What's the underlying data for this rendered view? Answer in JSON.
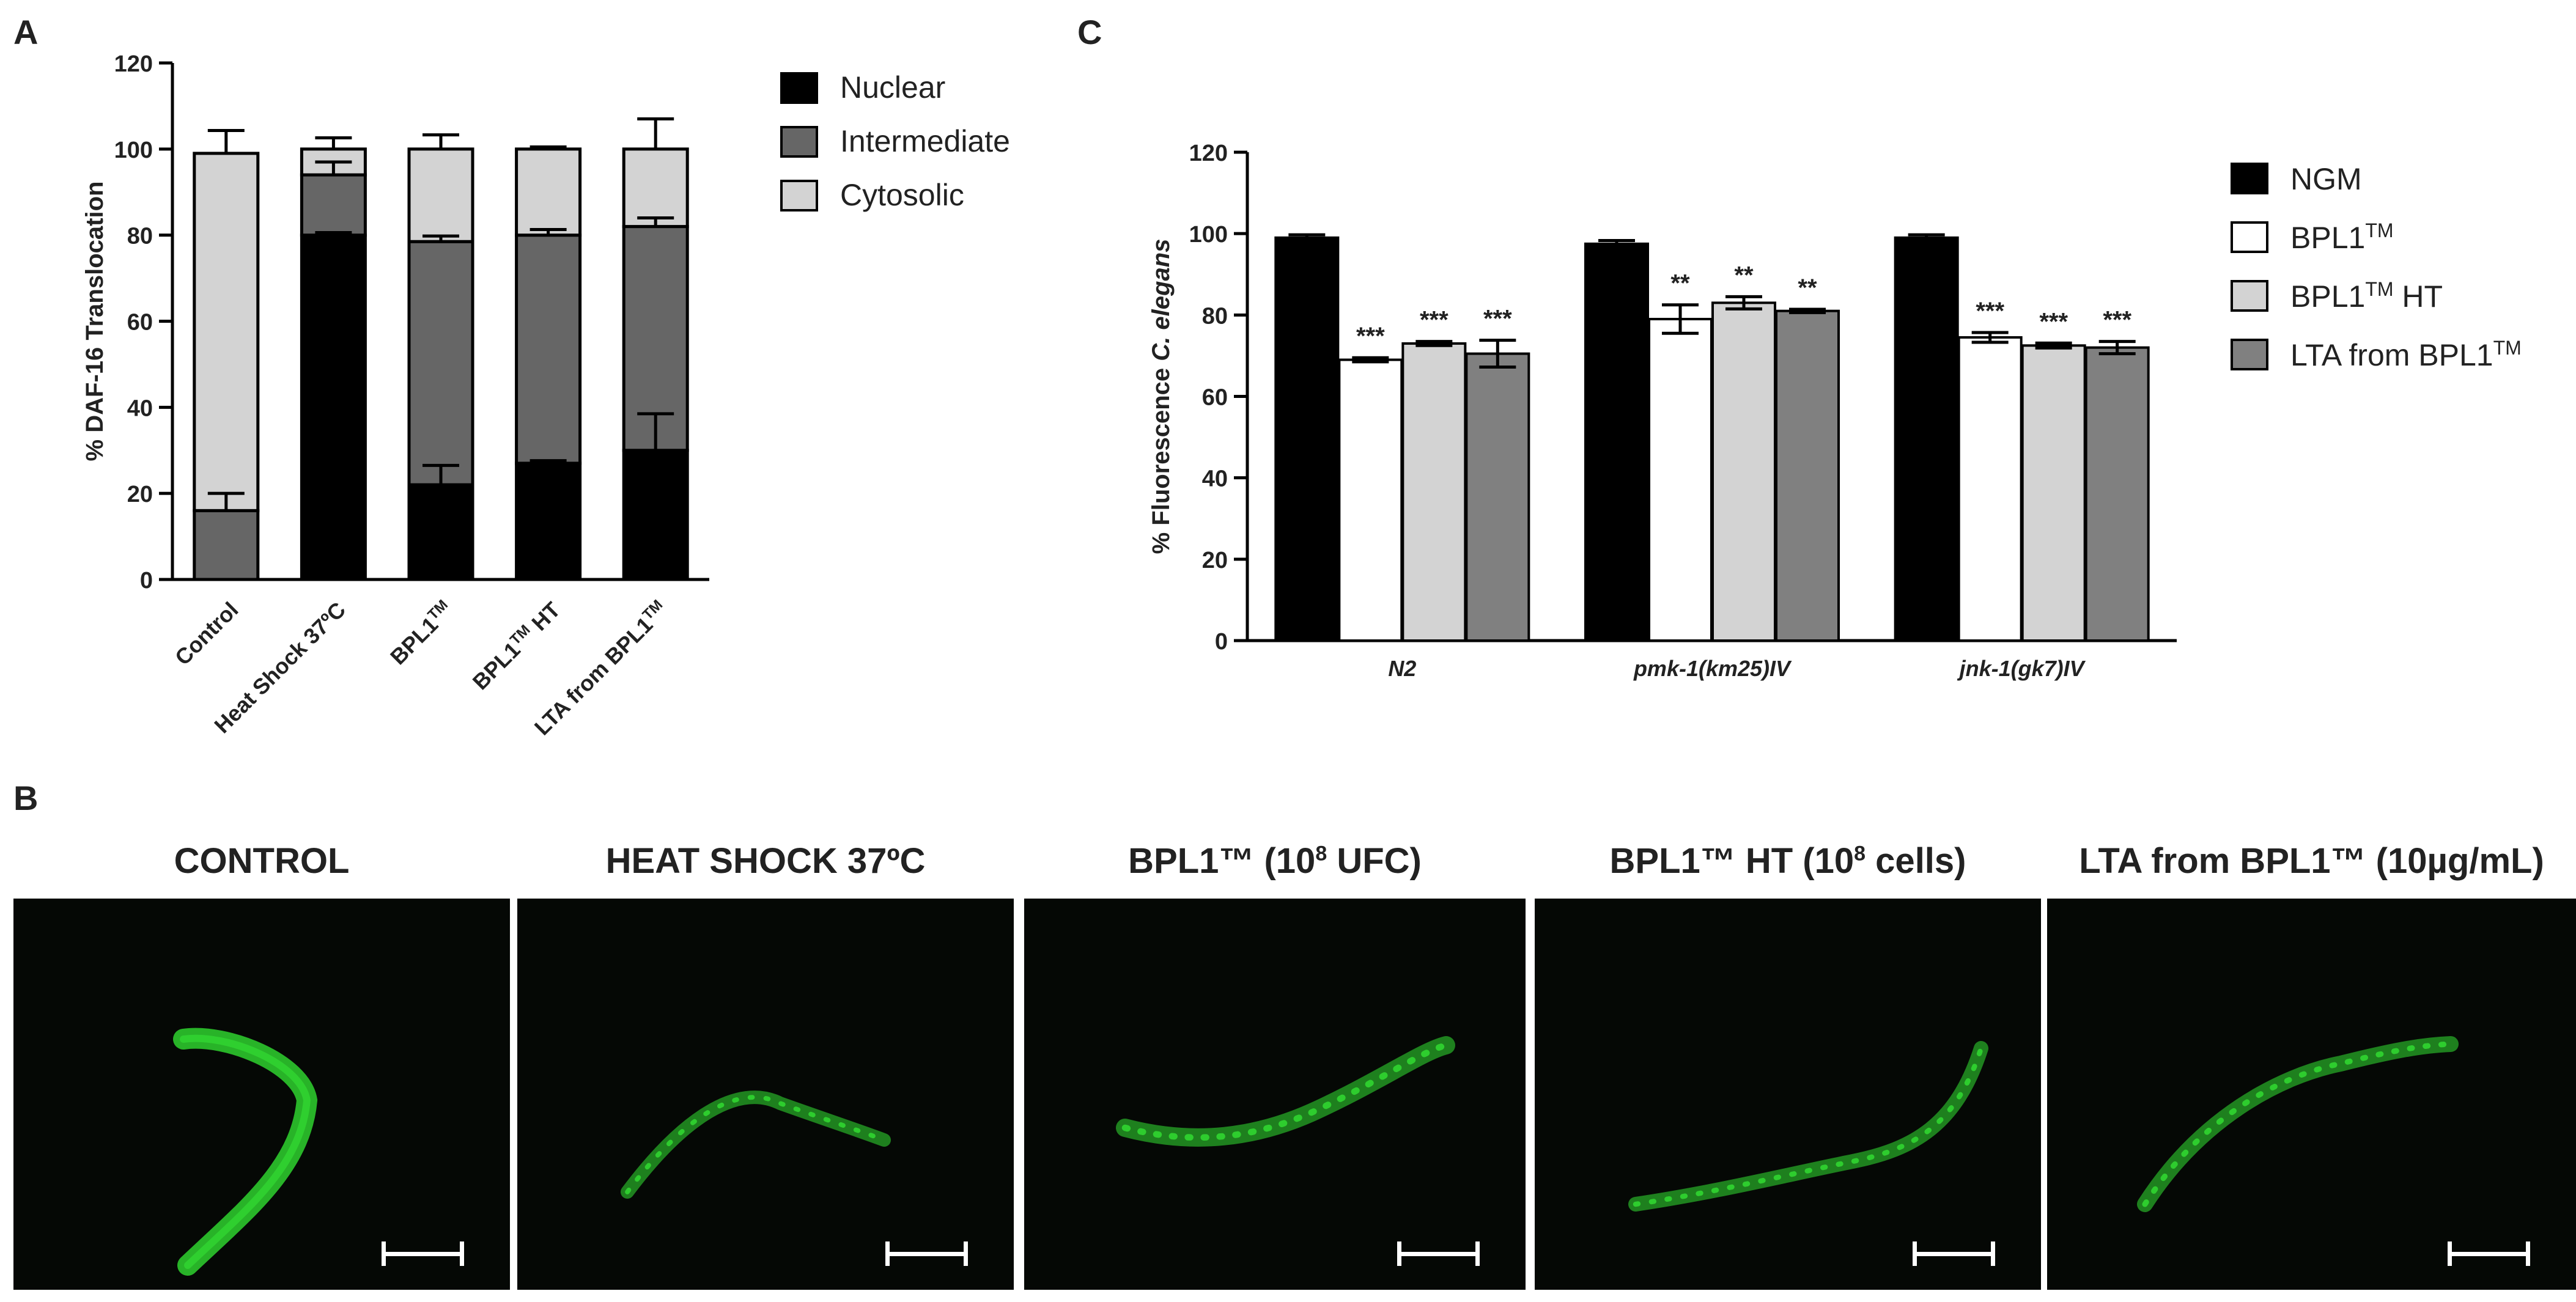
{
  "panel_labels": {
    "a": "A",
    "b": "B",
    "c": "C"
  },
  "micrographs": [
    {
      "title": "CONTROL",
      "sup": "",
      "title_suffix": ""
    },
    {
      "title": "HEAT SHOCK 37ºC",
      "sup": "",
      "title_suffix": ""
    },
    {
      "title": "BPL1™ (10",
      "sup": "8",
      "title_suffix": " UFC)"
    },
    {
      "title": "BPL1™ HT (10",
      "sup": "8",
      "title_suffix": " cells)"
    },
    {
      "title": "LTA from BPL1™ (10µg/mL)",
      "sup": "",
      "title_suffix": ""
    }
  ],
  "colors": {
    "nuclear": "#000000",
    "intermediate": "#666666",
    "cytosolic": "#d3d3d3",
    "ngm": "#000000",
    "bpl1": "#ffffff",
    "bpl1_ht": "#d3d3d3",
    "lta": "#808080",
    "worm": "#2fd12f",
    "micro_bg": "#050805"
  },
  "chart_data": [
    {
      "id": "A",
      "type": "bar",
      "stacked": true,
      "ylabel": "% DAF-16 Translocation",
      "xlabel": "",
      "ylim": [
        0,
        120
      ],
      "yticks": [
        0,
        20,
        40,
        60,
        80,
        100,
        120
      ],
      "categories": [
        "Control",
        "Heat Shock 37ºC",
        "BPL1TM",
        "BPL1TM HT",
        "LTA from BPL1TM"
      ],
      "category_labels": [
        {
          "main": "Control",
          "sup": "",
          "after": ""
        },
        {
          "main": "Heat Shock 37ºC",
          "sup": "",
          "after": ""
        },
        {
          "main": "BPL1",
          "sup": "TM",
          "after": ""
        },
        {
          "main": "BPL1",
          "sup": "TM",
          "after": " HT"
        },
        {
          "main": "LTA from BPL1",
          "sup": "TM",
          "after": ""
        }
      ],
      "legend": [
        "Nuclear",
        "Intermediate",
        "Cytosolic"
      ],
      "legend_position": "right",
      "series": [
        {
          "name": "Nuclear",
          "values": [
            0,
            80,
            22,
            27,
            30
          ],
          "errors": [
            0,
            0.6,
            4.5,
            0.6,
            8.5
          ]
        },
        {
          "name": "Intermediate",
          "values": [
            16,
            14,
            56.5,
            53,
            52
          ],
          "errors": [
            4,
            3,
            1.3,
            1.3,
            2
          ]
        },
        {
          "name": "Cytosolic",
          "values": [
            83,
            6,
            21.5,
            20,
            18
          ],
          "errors": [
            5.3,
            2.6,
            3.3,
            0.5,
            7
          ]
        }
      ]
    },
    {
      "id": "C",
      "type": "bar",
      "stacked": false,
      "ylabel_prefix": "% Fluorescence ",
      "ylabel_italic": "C. elegans",
      "xlabel": "",
      "ylim": [
        0,
        120
      ],
      "yticks": [
        0,
        20,
        40,
        60,
        80,
        100,
        120
      ],
      "categories": [
        "N2",
        "pmk-1(km25)IV",
        "jnk-1(gk7)IV"
      ],
      "legend": [
        {
          "main": "NGM",
          "sup": "",
          "after": ""
        },
        {
          "main": "BPL1",
          "sup": "TM",
          "after": ""
        },
        {
          "main": "BPL1",
          "sup": "TM",
          "after": " HT"
        },
        {
          "main": "LTA from BPL1",
          "sup": "TM",
          "after": ""
        }
      ],
      "legend_position": "right",
      "series": [
        {
          "name": "NGM",
          "values": [
            99,
            97.5,
            99
          ],
          "errors": [
            0.7,
            0.8,
            0.7
          ]
        },
        {
          "name": "BPL1TM",
          "values": [
            69,
            79,
            74.5
          ],
          "errors": [
            0.5,
            3.5,
            1.2
          ]
        },
        {
          "name": "BPL1TM HT",
          "values": [
            73,
            83,
            72.5
          ],
          "errors": [
            0.5,
            1.5,
            0.6
          ]
        },
        {
          "name": "LTA from BPL1TM",
          "values": [
            70.5,
            81,
            72
          ],
          "errors": [
            3.3,
            0.4,
            1.5
          ]
        }
      ],
      "significance": [
        [
          "",
          "***",
          "***",
          "***"
        ],
        [
          "",
          "**",
          "**",
          "**"
        ],
        [
          "",
          "***",
          "***",
          "***"
        ]
      ]
    }
  ]
}
